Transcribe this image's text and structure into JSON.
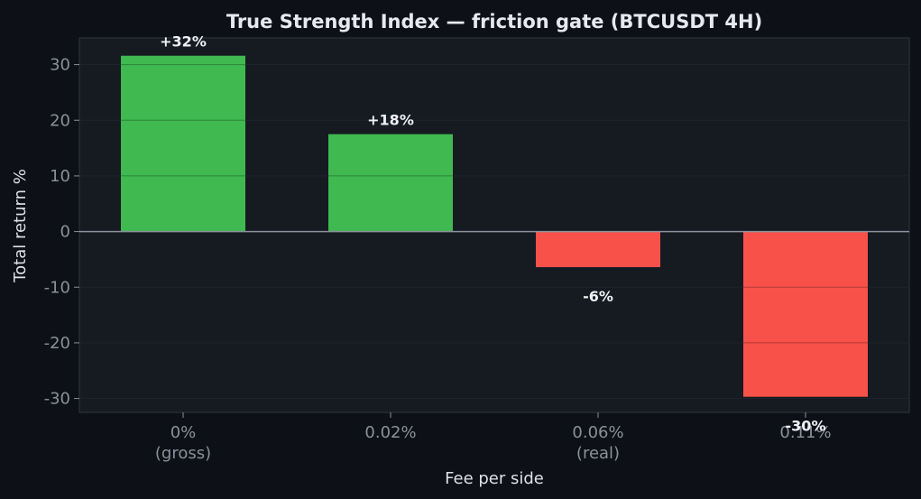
{
  "chart_data": {
    "type": "bar",
    "title": "True Strength Index — friction gate (BTCUSDT 4H)",
    "xlabel": "Fee per side",
    "ylabel": "Total return %",
    "categories": [
      [
        "0%",
        "(gross)"
      ],
      [
        "0.02%"
      ],
      [
        "0.06%",
        "(real)"
      ],
      [
        "0.11%"
      ]
    ],
    "values": [
      31.6,
      17.5,
      -6.4,
      -29.7
    ],
    "data_labels": [
      "+32%",
      "+18%",
      "-6%",
      "-30%"
    ],
    "ylim": [
      -32.5,
      34.8
    ],
    "yticks": [
      30,
      20,
      10,
      0,
      -10,
      -20,
      -30
    ],
    "ytick_labels": [
      "30",
      "20",
      "10",
      "0",
      "-10",
      "-20",
      "-30"
    ],
    "grid": true,
    "colors": {
      "positive": "#3fb950",
      "negative": "#f85149",
      "background": "#0d1017",
      "plot_background": "#161a21",
      "zero_line": "#8b949e"
    }
  }
}
